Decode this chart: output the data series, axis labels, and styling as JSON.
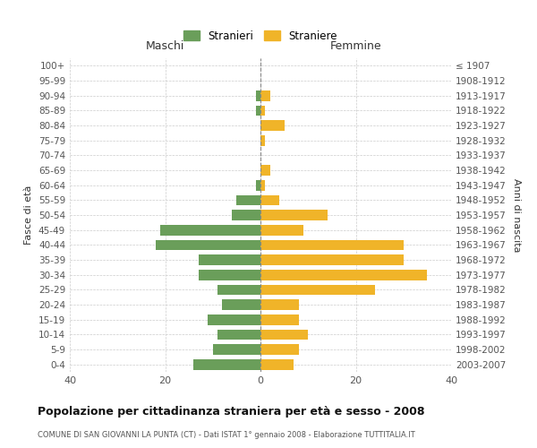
{
  "age_groups": [
    "100+",
    "95-99",
    "90-94",
    "85-89",
    "80-84",
    "75-79",
    "70-74",
    "65-69",
    "60-64",
    "55-59",
    "50-54",
    "45-49",
    "40-44",
    "35-39",
    "30-34",
    "25-29",
    "20-24",
    "15-19",
    "10-14",
    "5-9",
    "0-4"
  ],
  "birth_years": [
    "≤ 1907",
    "1908-1912",
    "1913-1917",
    "1918-1922",
    "1923-1927",
    "1928-1932",
    "1933-1937",
    "1938-1942",
    "1943-1947",
    "1948-1952",
    "1953-1957",
    "1958-1962",
    "1963-1967",
    "1968-1972",
    "1973-1977",
    "1978-1982",
    "1983-1987",
    "1988-1992",
    "1993-1997",
    "1998-2002",
    "2003-2007"
  ],
  "males": [
    0,
    0,
    1,
    1,
    0,
    0,
    0,
    0,
    1,
    5,
    6,
    21,
    22,
    13,
    13,
    9,
    8,
    11,
    9,
    10,
    14
  ],
  "females": [
    0,
    0,
    2,
    1,
    5,
    1,
    0,
    2,
    1,
    4,
    14,
    9,
    30,
    30,
    35,
    24,
    8,
    8,
    10,
    8,
    7
  ],
  "color_males": "#6a9e5a",
  "color_females": "#f0b429",
  "title": "Popolazione per cittadinanza straniera per età e sesso - 2008",
  "subtitle": "COMUNE DI SAN GIOVANNI LA PUNTA (CT) - Dati ISTAT 1° gennaio 2008 - Elaborazione TUTTITALIA.IT",
  "xlabel_left": "Maschi",
  "xlabel_right": "Femmine",
  "ylabel_left": "Fasce di età",
  "ylabel_right": "Anni di nascita",
  "legend_males": "Stranieri",
  "legend_females": "Straniere",
  "xlim": 40,
  "background_color": "#ffffff",
  "grid_color": "#cccccc"
}
